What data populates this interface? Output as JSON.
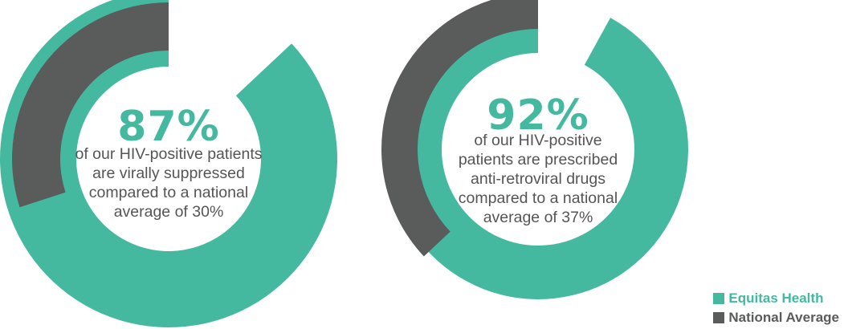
{
  "colors": {
    "equitas": "#45B9A0",
    "national": "#5A5B5B",
    "text": "#555555"
  },
  "chart_data": [
    {
      "type": "pie",
      "variant": "nested-donut",
      "big_label": "87%",
      "description": [
        "of our HIV-positive patients",
        "are virally suppressed",
        "compared to a national",
        "average of 30%"
      ],
      "series": [
        {
          "name": "Equitas Health",
          "value": 87
        },
        {
          "name": "National Average",
          "value": 30
        }
      ]
    },
    {
      "type": "pie",
      "variant": "nested-donut",
      "big_label": "92%",
      "description": [
        "of our HIV-positive",
        "patients are prescribed",
        "anti-retroviral drugs",
        "compared to a national",
        "average of 37%"
      ],
      "series": [
        {
          "name": "Equitas Health",
          "value": 92
        },
        {
          "name": "National Average",
          "value": 37
        }
      ]
    }
  ],
  "legend": [
    {
      "label": "Equitas Health",
      "color_key": "equitas"
    },
    {
      "label": "National Average",
      "color_key": "national"
    }
  ]
}
